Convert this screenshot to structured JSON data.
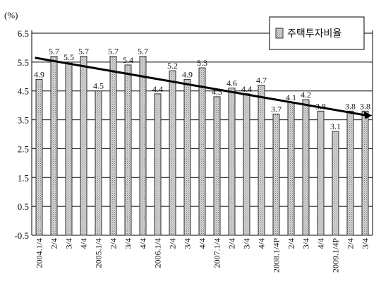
{
  "chart_data": {
    "type": "bar",
    "title": "",
    "xlabel": "",
    "ylabel": "(%)",
    "ylim": [
      -0.5,
      6.5
    ],
    "yticks": [
      "6.5",
      "5.5",
      "4.5",
      "3.5",
      "2.5",
      "1.5",
      "0.5",
      "-0.5"
    ],
    "grid": true,
    "legend_position": "top-right",
    "categories": [
      "2004.1/4",
      "2/4",
      "3/4",
      "4/4",
      "2005.1/4",
      "2/4",
      "3/4",
      "4/4",
      "2006.1/4",
      "2/4",
      "3/4",
      "4/4",
      "2007.1/4",
      "2/4",
      "3/4",
      "4/4",
      "2008.1/4P",
      "2/4",
      "3/4",
      "4/4",
      "2009.1/4P",
      "2/4",
      "3/4"
    ],
    "series": [
      {
        "name": "주택투자비율",
        "values": [
          4.9,
          5.7,
          5.5,
          5.7,
          4.5,
          5.7,
          5.4,
          5.7,
          4.4,
          5.2,
          4.9,
          5.3,
          4.3,
          4.6,
          4.4,
          4.7,
          3.7,
          4.1,
          4.2,
          3.8,
          3.1,
          3.8,
          3.8
        ]
      }
    ],
    "trendline": {
      "start_value": 5.65,
      "end_value": 3.65
    },
    "colors": {
      "bar_fill": "#c9c9c9",
      "bar_stroke": "#333333",
      "trend": "#000000"
    }
  }
}
